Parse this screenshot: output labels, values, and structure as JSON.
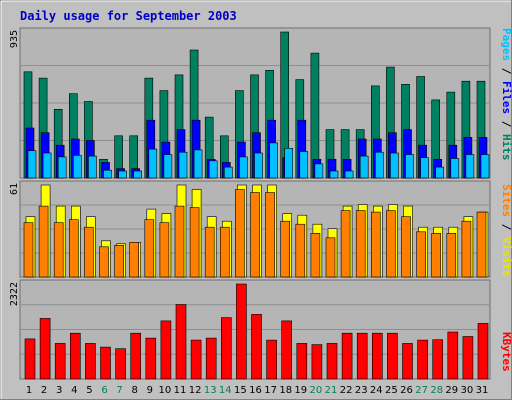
{
  "title": "Daily usage for September 2003",
  "colors": {
    "background": "#c0c0c0",
    "plot_bg": "#b5b5b5",
    "grid": "#8f8f8f",
    "title_text": "#0000cc",
    "hits": "#008060",
    "files": "#0000ff",
    "pages": "#00c0ff",
    "visits": "#ffff00",
    "sites": "#ff8000",
    "kbytes": "#ff0000",
    "day_weekday": "#000000",
    "day_weekend": "#00805c"
  },
  "chart_data": [
    {
      "type": "bar",
      "panel": "hits",
      "ymax_label": "935",
      "legend": {
        "pages": "Pages",
        "files": "Files",
        "hits": "Hits"
      },
      "series": [
        {
          "name": "Hits",
          "values": [
            680,
            640,
            440,
            540,
            490,
            120,
            270,
            270,
            640,
            560,
            660,
            820,
            390,
            270,
            560,
            660,
            690,
            935,
            630,
            800,
            310,
            310,
            310,
            590,
            710,
            600,
            650,
            500,
            550,
            620,
            620
          ]
        },
        {
          "name": "Files",
          "values": [
            320,
            290,
            210,
            250,
            240,
            100,
            60,
            60,
            370,
            230,
            310,
            370,
            120,
            100,
            230,
            290,
            370,
            130,
            370,
            120,
            120,
            120,
            250,
            250,
            290,
            310,
            210,
            120,
            210,
            260,
            260
          ]
        },
        {
          "name": "Pages",
          "values": [
            175,
            160,
            135,
            145,
            140,
            50,
            45,
            45,
            185,
            150,
            165,
            180,
            110,
            70,
            135,
            160,
            225,
            190,
            170,
            90,
            45,
            45,
            140,
            165,
            160,
            150,
            130,
            70,
            125,
            150,
            150
          ]
        }
      ]
    },
    {
      "type": "bar",
      "panel": "visits",
      "ymax_label": "61",
      "legend": {
        "sites": "Sites",
        "visits": "Visits"
      },
      "series": [
        {
          "name": "Visits",
          "values": [
            40,
            61,
            47,
            47,
            40,
            24,
            22,
            23,
            45,
            42,
            61,
            58,
            40,
            37,
            61,
            61,
            61,
            42,
            41,
            35,
            32,
            47,
            48,
            47,
            48,
            47,
            33,
            33,
            33,
            40,
            43
          ]
        },
        {
          "name": "Sites",
          "values": [
            36,
            47,
            36,
            38,
            33,
            20,
            21,
            23,
            38,
            36,
            47,
            46,
            33,
            33,
            58,
            56,
            56,
            37,
            35,
            29,
            26,
            44,
            44,
            43,
            44,
            40,
            30,
            29,
            29,
            37,
            43
          ]
        }
      ]
    },
    {
      "type": "bar",
      "panel": "kbytes",
      "ymax_label": "2322",
      "legend": {
        "kbytes": "KBytes"
      },
      "series": [
        {
          "name": "KBytes",
          "values": [
            980,
            1480,
            870,
            1120,
            870,
            780,
            740,
            1120,
            1000,
            1420,
            1820,
            950,
            1000,
            1500,
            2322,
            1580,
            950,
            1420,
            870,
            840,
            870,
            1120,
            1120,
            1120,
            1120,
            870,
            950,
            960,
            1150,
            1040,
            1360
          ]
        }
      ]
    }
  ],
  "days": [
    "1",
    "2",
    "3",
    "4",
    "5",
    "6",
    "7",
    "8",
    "9",
    "10",
    "11",
    "12",
    "13",
    "14",
    "15",
    "16",
    "17",
    "18",
    "19",
    "20",
    "21",
    "22",
    "23",
    "24",
    "25",
    "26",
    "27",
    "28",
    "29",
    "30",
    "31"
  ],
  "weekends": [
    6,
    7,
    13,
    14,
    20,
    21,
    27,
    28
  ]
}
